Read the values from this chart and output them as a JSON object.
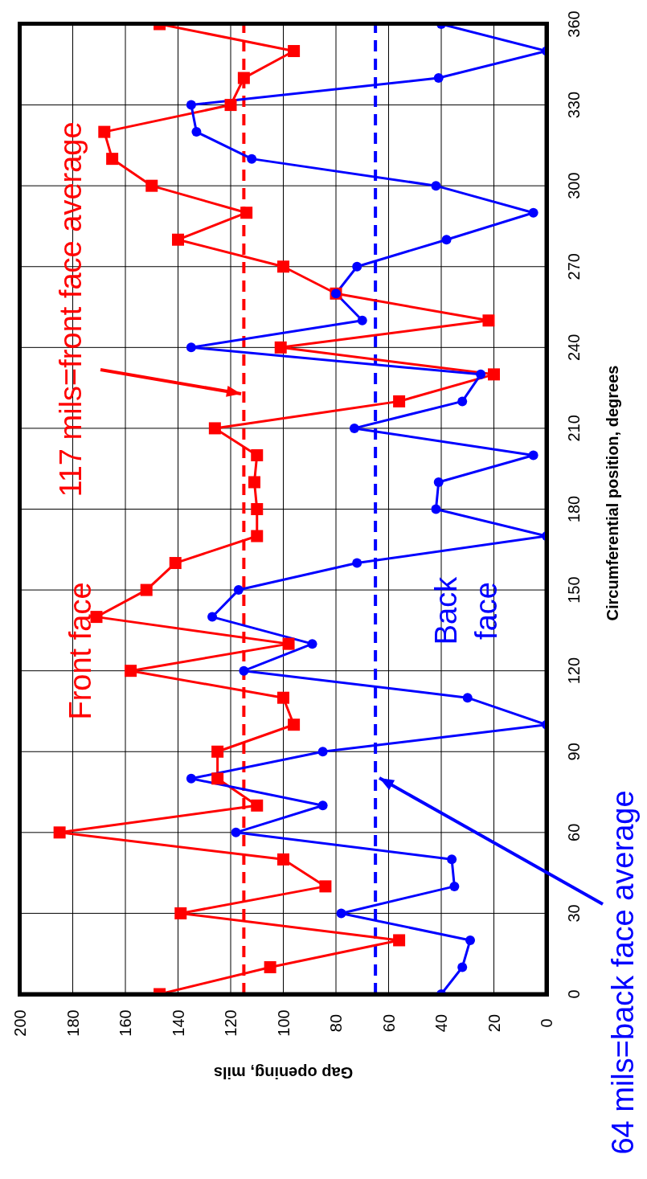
{
  "chart_data": {
    "type": "line",
    "xlabel": "Gap opening, mils",
    "ylabel": "Circumferential position, degrees",
    "series": [
      {
        "name": "Front face",
        "color": "#ff0000",
        "marker": "square",
        "x": [
          147,
          105,
          56,
          139,
          84,
          100,
          185,
          110,
          125,
          125,
          96,
          100,
          158,
          98,
          171,
          152,
          141,
          110,
          110,
          111,
          110,
          126,
          56,
          20,
          101,
          22,
          80,
          100,
          140,
          114,
          150,
          165,
          168,
          120,
          115,
          96,
          147
        ],
        "values": [
          0,
          10,
          20,
          30,
          40,
          50,
          60,
          70,
          80,
          90,
          100,
          110,
          120,
          130,
          140,
          150,
          160,
          170,
          180,
          190,
          200,
          210,
          220,
          230,
          240,
          250,
          260,
          270,
          280,
          290,
          300,
          310,
          320,
          330,
          340,
          350,
          360
        ]
      },
      {
        "name": "Back face",
        "color": "#0000ff",
        "marker": "circle",
        "x": [
          40,
          32,
          29,
          78,
          35,
          36,
          118,
          85,
          135,
          85,
          0,
          30,
          115,
          89,
          127,
          117,
          72,
          0,
          42,
          41,
          5,
          73,
          32,
          25,
          135,
          70,
          80,
          72,
          38,
          5,
          42,
          112,
          133,
          135,
          41,
          0,
          40
        ],
        "values": [
          0,
          10,
          20,
          30,
          40,
          50,
          60,
          70,
          80,
          90,
          100,
          110,
          120,
          130,
          140,
          150,
          160,
          170,
          180,
          190,
          200,
          210,
          220,
          230,
          240,
          250,
          260,
          270,
          280,
          290,
          300,
          310,
          320,
          330,
          340,
          350,
          360
        ]
      }
    ],
    "ref_lines": [
      {
        "axis": "x",
        "value": 115,
        "label": "117 mils=front face average",
        "color": "#ff0000",
        "line_style": "dashed"
      },
      {
        "axis": "x",
        "value": 65,
        "label": "64 mils=back face average",
        "color": "#0000ff",
        "line_style": "dashed"
      }
    ],
    "xlim": [
      200,
      0
    ],
    "xticks": [
      200,
      180,
      160,
      140,
      120,
      100,
      80,
      60,
      40,
      20,
      0
    ],
    "ylim": [
      0,
      360
    ],
    "yticks": [
      0,
      30,
      60,
      90,
      120,
      150,
      180,
      210,
      240,
      270,
      300,
      330,
      360
    ],
    "grid": true,
    "line_style": "solid"
  }
}
